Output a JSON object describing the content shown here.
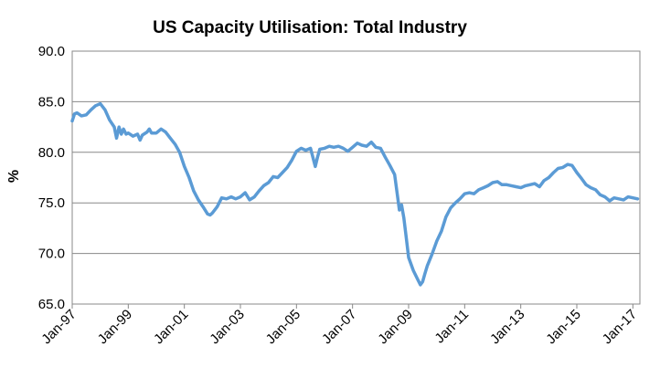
{
  "chart_data": {
    "type": "line",
    "title": "US Capacity Utilisation: Total Industry",
    "xlabel": "",
    "ylabel": "%",
    "ylim": [
      65.0,
      90.0
    ],
    "yticks": [
      "65.0",
      "70.0",
      "75.0",
      "80.0",
      "85.0",
      "90.0"
    ],
    "xlim": [
      1997.0,
      2017.25
    ],
    "xticks": [
      {
        "label": "Jan-97",
        "x": 1997.0
      },
      {
        "label": "Jan-99",
        "x": 1999.0
      },
      {
        "label": "Jan-01",
        "x": 2001.0
      },
      {
        "label": "Jan-03",
        "x": 2003.0
      },
      {
        "label": "Jan-05",
        "x": 2005.0
      },
      {
        "label": "Jan-07",
        "x": 2007.0
      },
      {
        "label": "Jan-09",
        "x": 2009.0
      },
      {
        "label": "Jan-11",
        "x": 2011.0
      },
      {
        "label": "Jan-13",
        "x": 2013.0
      },
      {
        "label": "Jan-15",
        "x": 2015.0
      },
      {
        "label": "Jan-17",
        "x": 2017.0
      }
    ],
    "grid": true,
    "series": [
      {
        "name": "US Capacity Utilisation: Total Industry",
        "color": "#5b9bd5",
        "x": [
          1997.0,
          1997.08,
          1997.17,
          1997.33,
          1997.5,
          1997.67,
          1997.83,
          1998.0,
          1998.17,
          1998.33,
          1998.5,
          1998.58,
          1998.67,
          1998.75,
          1998.83,
          1998.92,
          1999.0,
          1999.17,
          1999.33,
          1999.42,
          1999.5,
          1999.67,
          1999.75,
          1999.83,
          2000.0,
          2000.17,
          2000.33,
          2000.5,
          2000.67,
          2000.83,
          2001.0,
          2001.17,
          2001.33,
          2001.5,
          2001.67,
          2001.83,
          2001.92,
          2002.0,
          2002.17,
          2002.33,
          2002.5,
          2002.67,
          2002.83,
          2003.0,
          2003.17,
          2003.33,
          2003.5,
          2003.67,
          2003.83,
          2004.0,
          2004.17,
          2004.33,
          2004.5,
          2004.67,
          2004.83,
          2005.0,
          2005.17,
          2005.33,
          2005.5,
          2005.67,
          2005.75,
          2005.83,
          2006.0,
          2006.17,
          2006.33,
          2006.5,
          2006.67,
          2006.83,
          2007.0,
          2007.17,
          2007.33,
          2007.5,
          2007.67,
          2007.83,
          2008.0,
          2008.17,
          2008.33,
          2008.5,
          2008.67,
          2008.75,
          2008.83,
          2008.92,
          2009.0,
          2009.17,
          2009.33,
          2009.42,
          2009.5,
          2009.58,
          2009.67,
          2009.83,
          2010.0,
          2010.17,
          2010.33,
          2010.5,
          2010.67,
          2010.83,
          2011.0,
          2011.17,
          2011.33,
          2011.5,
          2011.67,
          2011.83,
          2012.0,
          2012.17,
          2012.33,
          2012.5,
          2012.67,
          2012.83,
          2013.0,
          2013.17,
          2013.33,
          2013.5,
          2013.67,
          2013.83,
          2014.0,
          2014.17,
          2014.33,
          2014.5,
          2014.67,
          2014.83,
          2015.0,
          2015.17,
          2015.33,
          2015.5,
          2015.67,
          2015.83,
          2016.0,
          2016.17,
          2016.33,
          2016.5,
          2016.67,
          2016.83,
          2017.0,
          2017.17
        ],
        "values": [
          83.1,
          83.8,
          83.9,
          83.6,
          83.7,
          84.2,
          84.6,
          84.8,
          84.2,
          83.2,
          82.5,
          81.4,
          82.5,
          81.8,
          82.3,
          81.8,
          81.9,
          81.6,
          81.8,
          81.2,
          81.7,
          82.0,
          82.3,
          81.9,
          81.9,
          82.3,
          82.0,
          81.4,
          80.8,
          80.0,
          78.6,
          77.5,
          76.2,
          75.3,
          74.6,
          73.9,
          73.8,
          74.0,
          74.6,
          75.5,
          75.4,
          75.6,
          75.4,
          75.6,
          76.0,
          75.3,
          75.6,
          76.2,
          76.7,
          77.0,
          77.6,
          77.5,
          78.0,
          78.5,
          79.2,
          80.1,
          80.4,
          80.2,
          80.4,
          78.6,
          79.5,
          80.3,
          80.4,
          80.6,
          80.5,
          80.6,
          80.4,
          80.1,
          80.5,
          80.9,
          80.7,
          80.6,
          81.0,
          80.5,
          80.4,
          79.5,
          78.7,
          77.8,
          74.3,
          74.8,
          73.5,
          71.5,
          69.6,
          68.3,
          67.4,
          66.9,
          67.2,
          68.0,
          68.8,
          69.9,
          71.2,
          72.2,
          73.6,
          74.5,
          75.0,
          75.4,
          75.9,
          76.0,
          75.9,
          76.3,
          76.5,
          76.7,
          77.0,
          77.1,
          76.8,
          76.8,
          76.7,
          76.6,
          76.5,
          76.7,
          76.8,
          76.9,
          76.6,
          77.2,
          77.5,
          78.0,
          78.4,
          78.5,
          78.8,
          78.7,
          78.0,
          77.4,
          76.8,
          76.5,
          76.3,
          75.8,
          75.6,
          75.2,
          75.5,
          75.4,
          75.3,
          75.6,
          75.5,
          75.4
        ]
      }
    ]
  }
}
